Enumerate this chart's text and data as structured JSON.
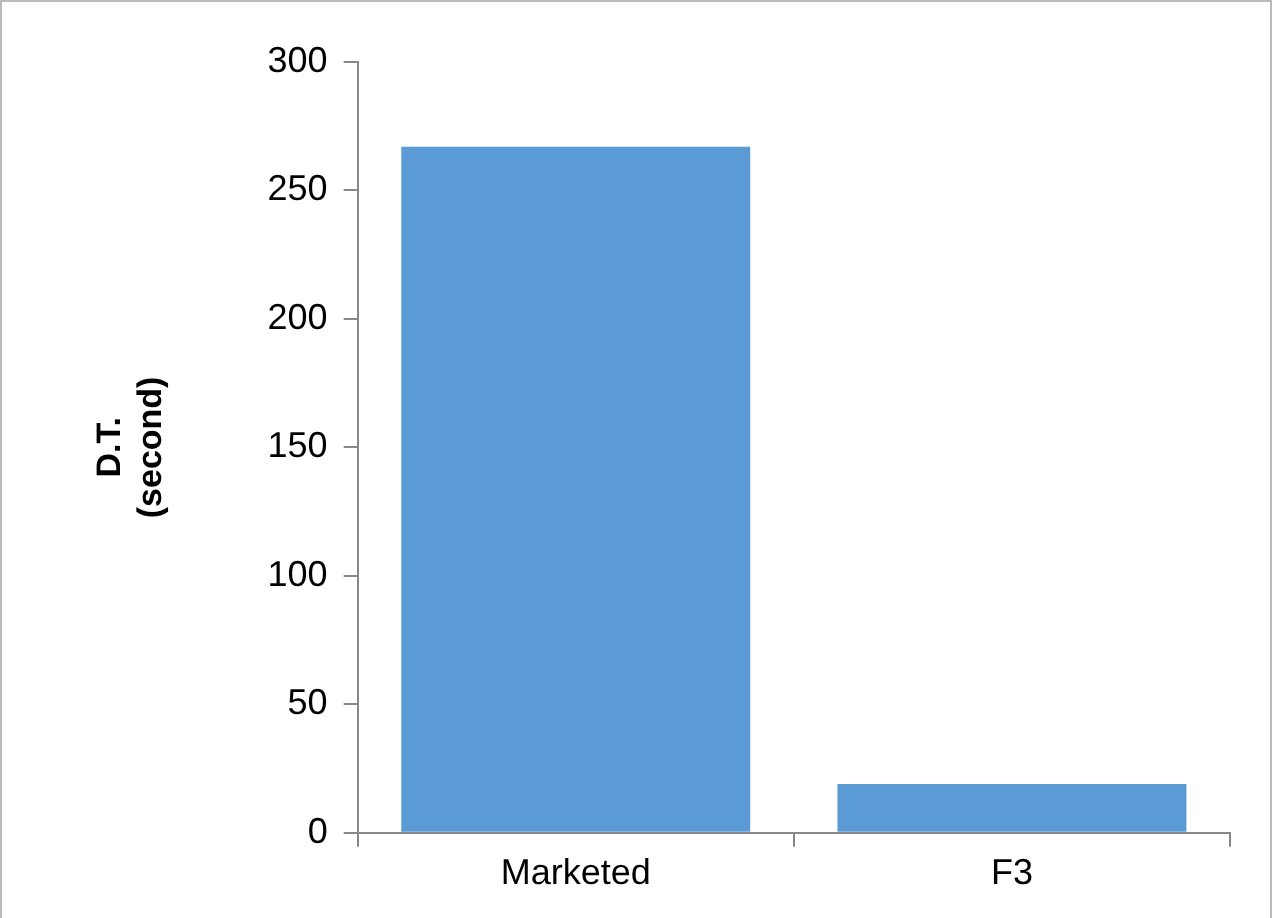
{
  "chart_data": {
    "type": "bar",
    "ylabel": "D.T.\n(second)",
    "categories": [
      "Marketed",
      "F3"
    ],
    "series": [
      {
        "color": "#5b9bd5",
        "values": [
          267,
          19
        ]
      }
    ],
    "ylim": [
      0,
      300
    ],
    "yticks": [
      0,
      50,
      100,
      150,
      200,
      250,
      300
    ],
    "grid": false,
    "legend": false
  }
}
